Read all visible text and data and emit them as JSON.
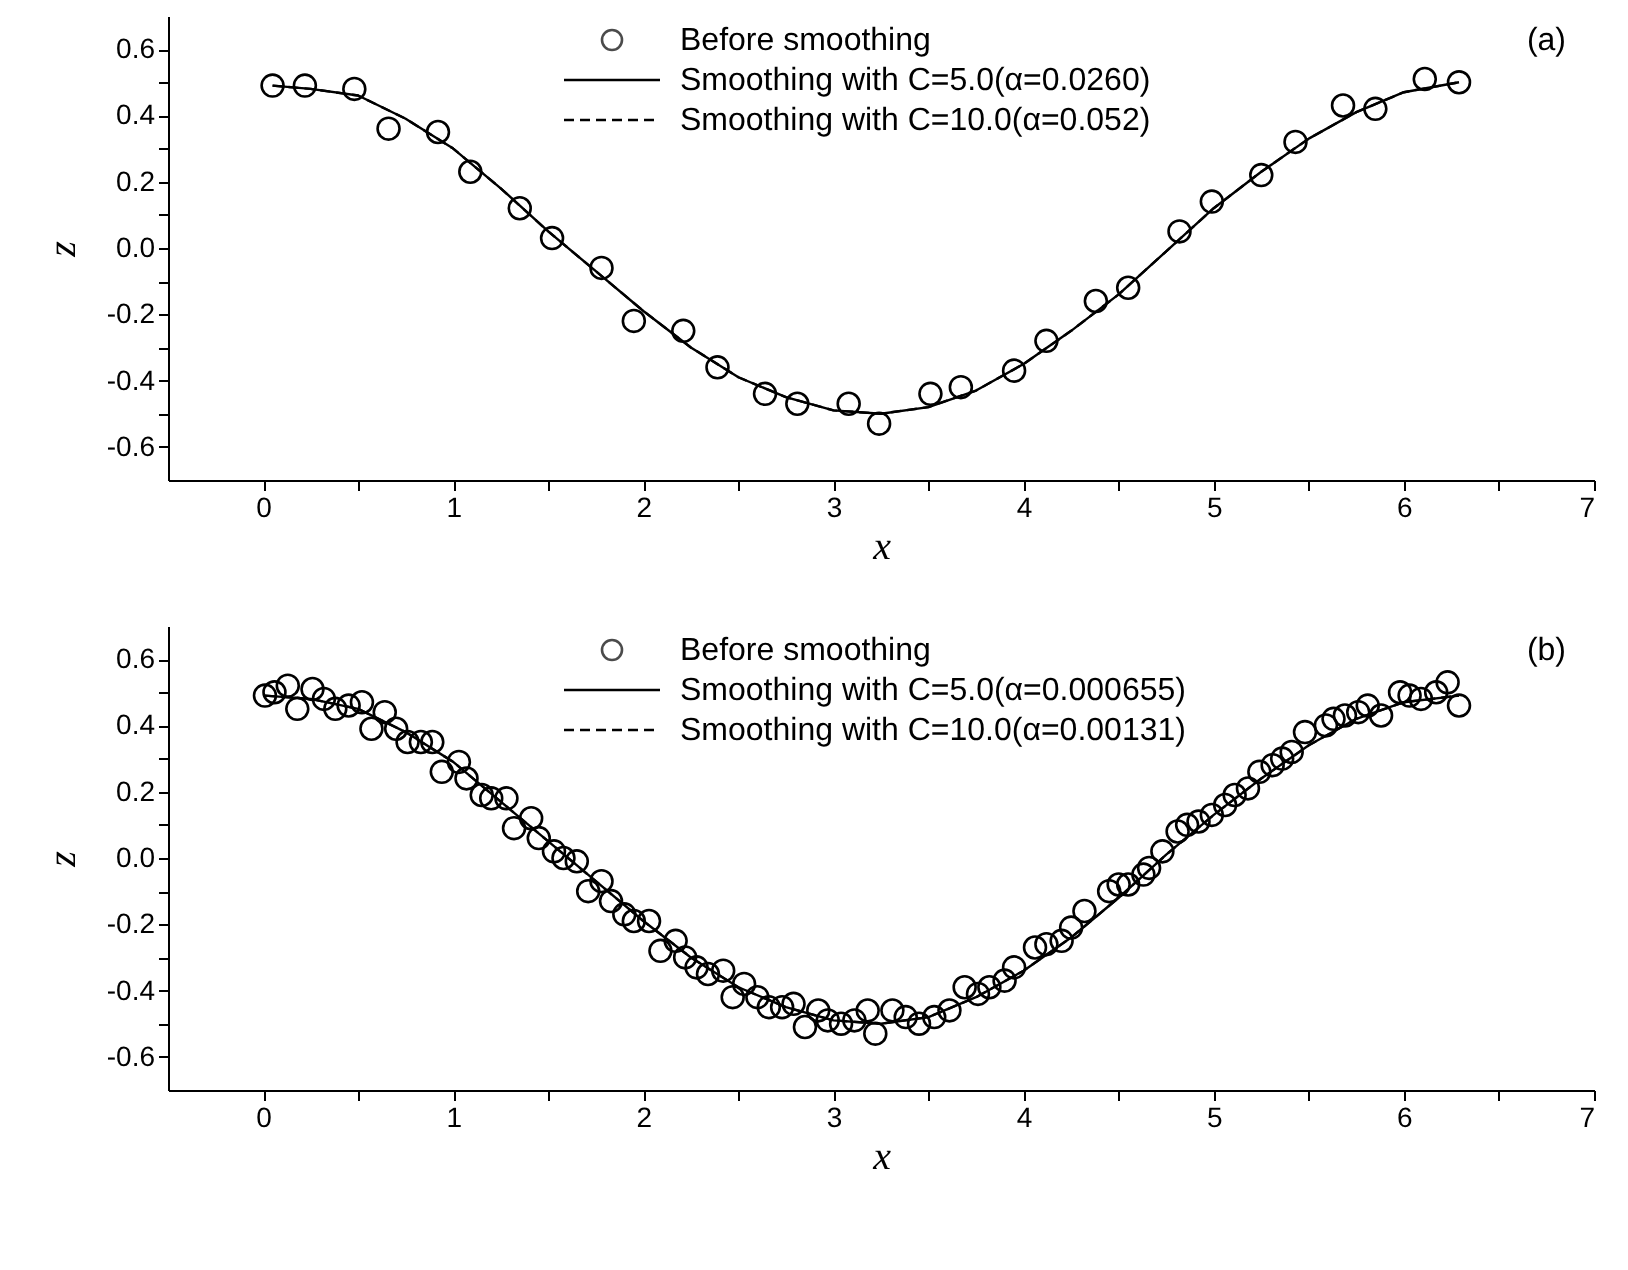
{
  "chart_data": [
    {
      "type": "scatter",
      "xlabel": "x",
      "ylabel": "z",
      "annotations": [
        "(a)"
      ],
      "legend": "top",
      "xlim": [
        -0.5,
        7
      ],
      "ylim": [
        -0.7,
        0.7
      ],
      "xticks": [
        0,
        {
          "value": 0.5,
          "label": null
        },
        1,
        {
          "value": 1.5,
          "label": null
        },
        2,
        {
          "value": 2.5,
          "label": null
        },
        3,
        {
          "value": 3.5,
          "label": null
        },
        4,
        {
          "value": 4.5,
          "label": null
        },
        5,
        {
          "value": 5.5,
          "label": null
        },
        6,
        {
          "value": 6.5,
          "label": null
        },
        7
      ],
      "yticks": [
        -0.6,
        {
          "value": -0.5,
          "label": null
        },
        -0.4,
        {
          "value": -0.3,
          "label": null
        },
        -0.2,
        {
          "value": -0.1,
          "label": null
        },
        {
          "value": 0,
          "label": "0.0"
        },
        {
          "value": 0.1,
          "label": null
        },
        0.2,
        {
          "value": 0.3,
          "label": null
        },
        0.4,
        {
          "value": 0.5,
          "label": null
        },
        0.6
      ],
      "series": [
        {
          "name": "Before smoothing",
          "type": "scatter",
          "marker": "circle",
          "color": "#000000",
          "x": [
            0.05,
            0.22,
            0.48,
            0.66,
            0.92,
            1.09,
            1.35,
            1.52,
            1.78,
            1.95,
            2.21,
            2.39,
            2.64,
            2.81,
            3.08,
            3.24,
            3.51,
            3.67,
            3.95,
            4.12,
            4.38,
            4.55,
            4.82,
            4.99,
            5.25,
            5.43,
            5.68,
            5.85,
            6.11,
            6.29
          ],
          "values": [
            0.49,
            0.49,
            0.48,
            0.36,
            0.35,
            0.23,
            0.12,
            0.03,
            -0.06,
            -0.22,
            -0.25,
            -0.36,
            -0.44,
            -0.47,
            -0.47,
            -0.53,
            -0.44,
            -0.42,
            -0.37,
            -0.28,
            -0.16,
            -0.12,
            0.05,
            0.14,
            0.22,
            0.32,
            0.43,
            0.42,
            0.51,
            0.5
          ]
        },
        {
          "name": "Smoothing with C=5.0(α=0.0260)",
          "type": "line",
          "line_style": "solid",
          "color": "#000000",
          "x": [
            0.05,
            0.25,
            0.5,
            0.75,
            1,
            1.25,
            1.5,
            1.75,
            2,
            2.25,
            2.5,
            2.75,
            3,
            3.25,
            3.5,
            3.75,
            4,
            4.25,
            4.5,
            4.75,
            5,
            5.25,
            5.5,
            5.75,
            6,
            6.29
          ],
          "values": [
            0.49,
            0.48,
            0.46,
            0.39,
            0.3,
            0.18,
            0.05,
            -0.07,
            -0.19,
            -0.3,
            -0.39,
            -0.45,
            -0.49,
            -0.5,
            -0.48,
            -0.43,
            -0.35,
            -0.25,
            -0.14,
            -0.01,
            0.12,
            0.23,
            0.33,
            0.41,
            0.47,
            0.5
          ]
        },
        {
          "name": "Smoothing with C=10.0(α=0.052)",
          "type": "line",
          "line_style": "dashed",
          "color": "#000000",
          "x": [
            0.05,
            0.25,
            0.5,
            0.75,
            1,
            1.25,
            1.5,
            1.75,
            2,
            2.25,
            2.5,
            2.75,
            3,
            3.25,
            3.5,
            3.75,
            4,
            4.25,
            4.5,
            4.75,
            5,
            5.25,
            5.5,
            5.75,
            6,
            6.29
          ],
          "values": [
            0.49,
            0.48,
            0.46,
            0.39,
            0.3,
            0.18,
            0.05,
            -0.07,
            -0.19,
            -0.3,
            -0.39,
            -0.45,
            -0.49,
            -0.5,
            -0.48,
            -0.43,
            -0.35,
            -0.25,
            -0.14,
            -0.01,
            0.12,
            0.23,
            0.33,
            0.41,
            0.47,
            0.5
          ]
        }
      ]
    },
    {
      "type": "scatter",
      "xlabel": "x",
      "ylabel": "z",
      "annotations": [
        "(b)"
      ],
      "legend": "top",
      "xlim": [
        -0.5,
        7
      ],
      "ylim": [
        -0.7,
        0.7
      ],
      "xticks": [
        0,
        {
          "value": 0.5,
          "label": null
        },
        1,
        {
          "value": 1.5,
          "label": null
        },
        2,
        {
          "value": 2.5,
          "label": null
        },
        3,
        {
          "value": 3.5,
          "label": null
        },
        4,
        {
          "value": 4.5,
          "label": null
        },
        5,
        {
          "value": 5.5,
          "label": null
        },
        6,
        {
          "value": 6.5,
          "label": null
        },
        7
      ],
      "yticks": [
        -0.6,
        {
          "value": -0.5,
          "label": null
        },
        -0.4,
        {
          "value": -0.3,
          "label": null
        },
        -0.2,
        {
          "value": -0.1,
          "label": null
        },
        {
          "value": 0,
          "label": "0.0"
        },
        {
          "value": 0.1,
          "label": null
        },
        0.2,
        {
          "value": 0.3,
          "label": null
        },
        0.4,
        {
          "value": 0.5,
          "label": null
        },
        0.6
      ],
      "series": [
        {
          "name": "Before smoothing",
          "type": "scatter",
          "marker": "circle",
          "color": "#000000",
          "x": [
            0.01,
            0.06,
            0.13,
            0.18,
            0.26,
            0.32,
            0.38,
            0.45,
            0.52,
            0.57,
            0.64,
            0.7,
            0.76,
            0.83,
            0.89,
            0.94,
            1.03,
            1.07,
            1.15,
            1.2,
            1.28,
            1.32,
            1.41,
            1.45,
            1.53,
            1.58,
            1.65,
            1.71,
            1.78,
            1.83,
            1.9,
            1.95,
            2.03,
            2.09,
            2.17,
            2.22,
            2.28,
            2.34,
            2.42,
            2.47,
            2.53,
            2.6,
            2.66,
            2.73,
            2.79,
            2.85,
            2.92,
            2.97,
            3.04,
            3.11,
            3.18,
            3.22,
            3.31,
            3.38,
            3.45,
            3.53,
            3.61,
            3.69,
            3.76,
            3.82,
            3.9,
            3.95,
            4.06,
            4.12,
            4.2,
            4.25,
            4.32,
            4.45,
            4.5,
            4.55,
            4.63,
            4.66,
            4.73,
            4.81,
            4.86,
            4.92,
            4.99,
            5.06,
            5.11,
            5.18,
            5.24,
            5.31,
            5.36,
            5.41,
            5.48,
            5.59,
            5.63,
            5.69,
            5.76,
            5.81,
            5.88,
            5.98,
            6.03,
            6.09,
            6.17,
            6.23,
            6.29
          ],
          "values": [
            0.49,
            0.5,
            0.52,
            0.45,
            0.51,
            0.48,
            0.45,
            0.46,
            0.47,
            0.39,
            0.44,
            0.39,
            0.35,
            0.35,
            0.35,
            0.26,
            0.29,
            0.24,
            0.19,
            0.18,
            0.18,
            0.09,
            0.12,
            0.06,
            0.02,
            0.0,
            -0.01,
            -0.1,
            -0.07,
            -0.13,
            -0.17,
            -0.19,
            -0.19,
            -0.28,
            -0.25,
            -0.3,
            -0.33,
            -0.35,
            -0.34,
            -0.42,
            -0.38,
            -0.42,
            -0.45,
            -0.45,
            -0.44,
            -0.51,
            -0.46,
            -0.49,
            -0.5,
            -0.49,
            -0.46,
            -0.53,
            -0.46,
            -0.48,
            -0.5,
            -0.48,
            -0.46,
            -0.39,
            -0.41,
            -0.39,
            -0.37,
            -0.33,
            -0.27,
            -0.26,
            -0.25,
            -0.21,
            -0.16,
            -0.1,
            -0.08,
            -0.08,
            -0.05,
            -0.03,
            0.02,
            0.08,
            0.1,
            0.11,
            0.13,
            0.16,
            0.19,
            0.21,
            0.26,
            0.28,
            0.3,
            0.32,
            0.38,
            0.4,
            0.42,
            0.43,
            0.44,
            0.46,
            0.43,
            0.5,
            0.49,
            0.48,
            0.5,
            0.53,
            0.46
          ]
        },
        {
          "name": "Smoothing with C=5.0(α=0.000655)",
          "type": "line",
          "line_style": "solid",
          "color": "#000000",
          "x": [
            0.01,
            0.25,
            0.5,
            0.75,
            1,
            1.25,
            1.5,
            1.75,
            2,
            2.25,
            2.5,
            2.75,
            3,
            3.25,
            3.5,
            3.75,
            4,
            4.25,
            4.5,
            4.75,
            5,
            5.25,
            5.5,
            5.75,
            6,
            6.29
          ],
          "values": [
            0.49,
            0.48,
            0.45,
            0.38,
            0.29,
            0.17,
            0.05,
            -0.07,
            -0.19,
            -0.3,
            -0.39,
            -0.45,
            -0.49,
            -0.5,
            -0.48,
            -0.42,
            -0.34,
            -0.24,
            -0.12,
            0.01,
            0.13,
            0.24,
            0.34,
            0.42,
            0.47,
            0.49
          ]
        },
        {
          "name": "Smoothing with C=10.0(α=0.00131)",
          "type": "line",
          "line_style": "dashed",
          "color": "#000000",
          "x": [
            0.01,
            0.25,
            0.5,
            0.75,
            1,
            1.25,
            1.5,
            1.75,
            2,
            2.25,
            2.5,
            2.75,
            3,
            3.25,
            3.5,
            3.75,
            4,
            4.25,
            4.5,
            4.75,
            5,
            5.25,
            5.5,
            5.75,
            6,
            6.29
          ],
          "values": [
            0.49,
            0.48,
            0.45,
            0.38,
            0.29,
            0.17,
            0.05,
            -0.07,
            -0.19,
            -0.3,
            -0.39,
            -0.45,
            -0.49,
            -0.5,
            -0.48,
            -0.42,
            -0.34,
            -0.24,
            -0.12,
            0.01,
            0.13,
            0.24,
            0.34,
            0.42,
            0.47,
            0.49
          ]
        }
      ]
    }
  ]
}
